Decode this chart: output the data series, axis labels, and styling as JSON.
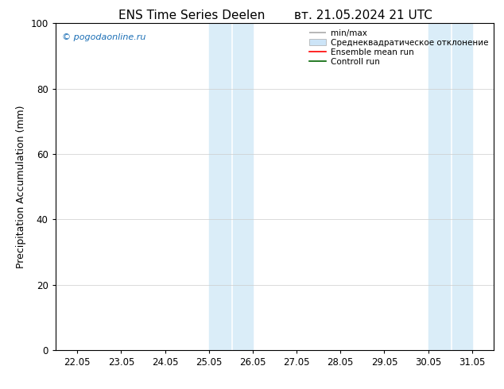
{
  "title_left": "ENS Time Series Deelen",
  "title_right": "вт. 21.05.2024 21 UTC",
  "ylabel": "Precipitation Accumulation (mm)",
  "ylim": [
    0,
    100
  ],
  "xtick_labels": [
    "22.05",
    "23.05",
    "24.05",
    "25.05",
    "26.05",
    "27.05",
    "28.05",
    "29.05",
    "30.05",
    "31.05"
  ],
  "xtick_positions": [
    0,
    1,
    2,
    3,
    4,
    5,
    6,
    7,
    8,
    9
  ],
  "shade_bands": [
    [
      2.5,
      3.0
    ],
    [
      3.0,
      3.5
    ],
    [
      7.5,
      8.0
    ],
    [
      8.0,
      8.5
    ]
  ],
  "shade_color": "#daedf8",
  "watermark_text": "© pogodaonline.ru",
  "watermark_color": "#1a6eb5",
  "legend_entries": [
    "min/max",
    "Среднеквадратическое отклонение",
    "Ensemble mean run",
    "Controll run"
  ],
  "legend_line_colors": [
    "#999999",
    "#cce4f7",
    "#ff0000",
    "#008000"
  ],
  "background_color": "#ffffff",
  "grid_color": "#cccccc",
  "title_fontsize": 11,
  "label_fontsize": 9,
  "tick_fontsize": 8.5,
  "legend_fontsize": 7.5,
  "xlim": [
    -0.5,
    9.5
  ]
}
